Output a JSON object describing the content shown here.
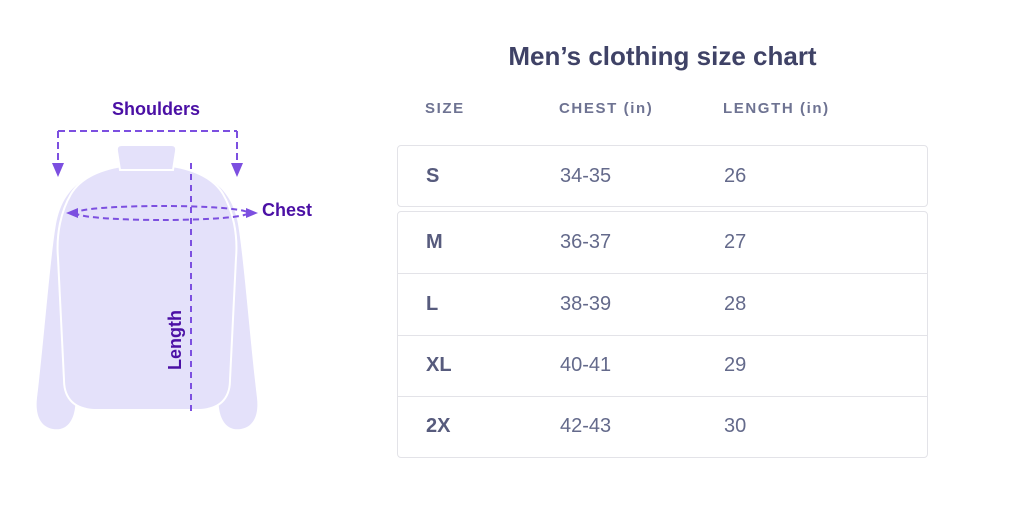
{
  "title": "Men’s clothing size chart",
  "diagram": {
    "labels": {
      "shoulders": "Shoulders",
      "chest": "Chest",
      "length": "Length"
    }
  },
  "table": {
    "headers": [
      {
        "key": "size",
        "label": "SIZE"
      },
      {
        "key": "chest",
        "label": "CHEST (in)"
      },
      {
        "key": "length",
        "label": "LENGTH (in)"
      }
    ],
    "rows": [
      {
        "size": "S",
        "chest": "34-35",
        "length": "26"
      },
      {
        "size": "M",
        "chest": "36-37",
        "length": "27"
      },
      {
        "size": "L",
        "chest": "38-39",
        "length": "28"
      },
      {
        "size": "XL",
        "chest": "40-41",
        "length": "29"
      },
      {
        "size": "2X",
        "chest": "42-43",
        "length": "30"
      }
    ]
  },
  "colors": {
    "accent_purple": "#4b10a5",
    "dash_purple": "#7c4fe0",
    "shirt_fill": "#e4e1fa",
    "title_color": "#3f4266",
    "header_color": "#6e7392",
    "size_color": "#575b7d",
    "value_color": "#646a8b",
    "card_border": "#e3e3e8",
    "page_bg": "#ffffff"
  }
}
